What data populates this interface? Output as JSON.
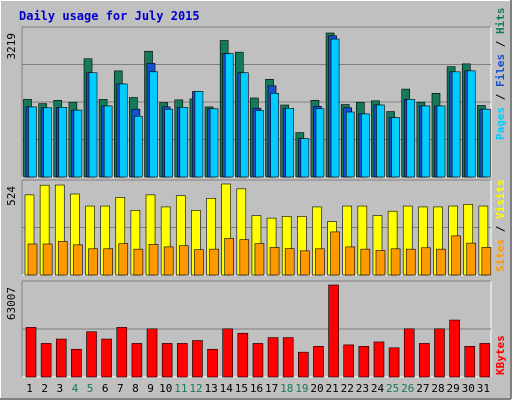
{
  "chart_data": [
    {
      "type": "bar",
      "title": "Daily usage for July 2015",
      "ymax_label": "3219",
      "categories": [
        "1",
        "2",
        "3",
        "4",
        "5",
        "6",
        "7",
        "8",
        "9",
        "10",
        "11",
        "12",
        "13",
        "14",
        "15",
        "16",
        "17",
        "18",
        "19",
        "20",
        "21",
        "22",
        "23",
        "24",
        "25",
        "26",
        "27",
        "28",
        "29",
        "30",
        "31"
      ],
      "weekend_days": [
        "4",
        "5",
        "11",
        "12",
        "18",
        "19",
        "25",
        "26"
      ],
      "series": [
        {
          "name": "Hits",
          "color": "#157a5c",
          "values": [
            1660,
            1570,
            1640,
            1600,
            2530,
            1660,
            2270,
            1700,
            2690,
            1590,
            1650,
            1670,
            1500,
            2920,
            2670,
            1690,
            2090,
            1540,
            950,
            1640,
            3080,
            1550,
            1600,
            1630,
            1400,
            1880,
            1600,
            1790,
            2360,
            2420,
            1530
          ]
        },
        {
          "name": "Files",
          "color": "#1650d0",
          "values": [
            1500,
            1480,
            1490,
            1430,
            2230,
            1520,
            1990,
            1450,
            2430,
            1500,
            1490,
            1830,
            1460,
            2640,
            2230,
            1470,
            1950,
            1470,
            820,
            1510,
            3020,
            1480,
            1350,
            1540,
            1270,
            1660,
            1520,
            1520,
            2250,
            2270,
            1450
          ]
        },
        {
          "name": "Pages",
          "color": "#00ccff",
          "values": [
            1500,
            1480,
            1490,
            1430,
            2230,
            1520,
            1990,
            1300,
            2250,
            1450,
            1490,
            1830,
            1460,
            2640,
            2230,
            1420,
            1790,
            1470,
            820,
            1460,
            2950,
            1390,
            1350,
            1540,
            1270,
            1660,
            1520,
            1520,
            2250,
            2270,
            1450
          ]
        }
      ]
    },
    {
      "type": "bar",
      "ymax_label": "524",
      "series": [
        {
          "name": "Visits",
          "color": "#ffff00",
          "values": [
            465,
            521,
            522,
            470,
            400,
            400,
            450,
            375,
            465,
            395,
            460,
            375,
            445,
            528,
            500,
            345,
            330,
            340,
            340,
            395,
            310,
            400,
            400,
            345,
            370,
            400,
            395,
            395,
            400,
            410,
            400
          ]
        },
        {
          "name": "Sites",
          "color": "#ff9900",
          "values": [
            180,
            180,
            195,
            175,
            152,
            152,
            182,
            150,
            178,
            163,
            170,
            147,
            150,
            213,
            205,
            182,
            160,
            153,
            140,
            152,
            250,
            163,
            150,
            142,
            152,
            150,
            158,
            150,
            227,
            185,
            160
          ]
        }
      ]
    },
    {
      "type": "bar",
      "ymax_label": "63007",
      "series": [
        {
          "name": "KBytes",
          "color": "#ff0000",
          "values": [
            34000,
            23000,
            26000,
            19000,
            31000,
            26000,
            34000,
            23000,
            33000,
            23000,
            23000,
            25000,
            19000,
            33000,
            30000,
            23000,
            27000,
            27000,
            17000,
            21000,
            63007,
            22000,
            21000,
            24000,
            20000,
            33000,
            23000,
            33000,
            39000,
            21000,
            23000
          ]
        }
      ]
    }
  ]
}
